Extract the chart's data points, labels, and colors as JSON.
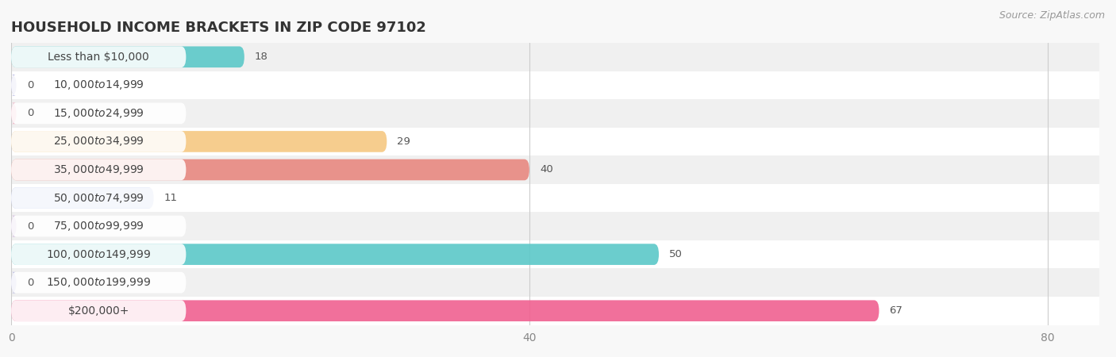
{
  "title": "HOUSEHOLD INCOME BRACKETS IN ZIP CODE 97102",
  "source": "Source: ZipAtlas.com",
  "categories": [
    "Less than $10,000",
    "$10,000 to $14,999",
    "$15,000 to $24,999",
    "$25,000 to $34,999",
    "$35,000 to $49,999",
    "$50,000 to $74,999",
    "$75,000 to $99,999",
    "$100,000 to $149,999",
    "$150,000 to $199,999",
    "$200,000+"
  ],
  "values": [
    18,
    0,
    0,
    29,
    40,
    11,
    0,
    50,
    0,
    67
  ],
  "bar_colors": [
    "#5bc8c8",
    "#a8a8e0",
    "#f0a0b8",
    "#f5c882",
    "#e88880",
    "#a8b8e8",
    "#c8a8d8",
    "#5bc8c8",
    "#b0b0e0",
    "#f06090"
  ],
  "row_bg_colors": [
    "#f0f0f0",
    "#ffffff"
  ],
  "xlim": [
    0,
    84
  ],
  "xticks": [
    0,
    40,
    80
  ],
  "background_color": "#f8f8f8",
  "title_fontsize": 13,
  "label_fontsize": 10,
  "value_fontsize": 9.5,
  "source_fontsize": 9
}
